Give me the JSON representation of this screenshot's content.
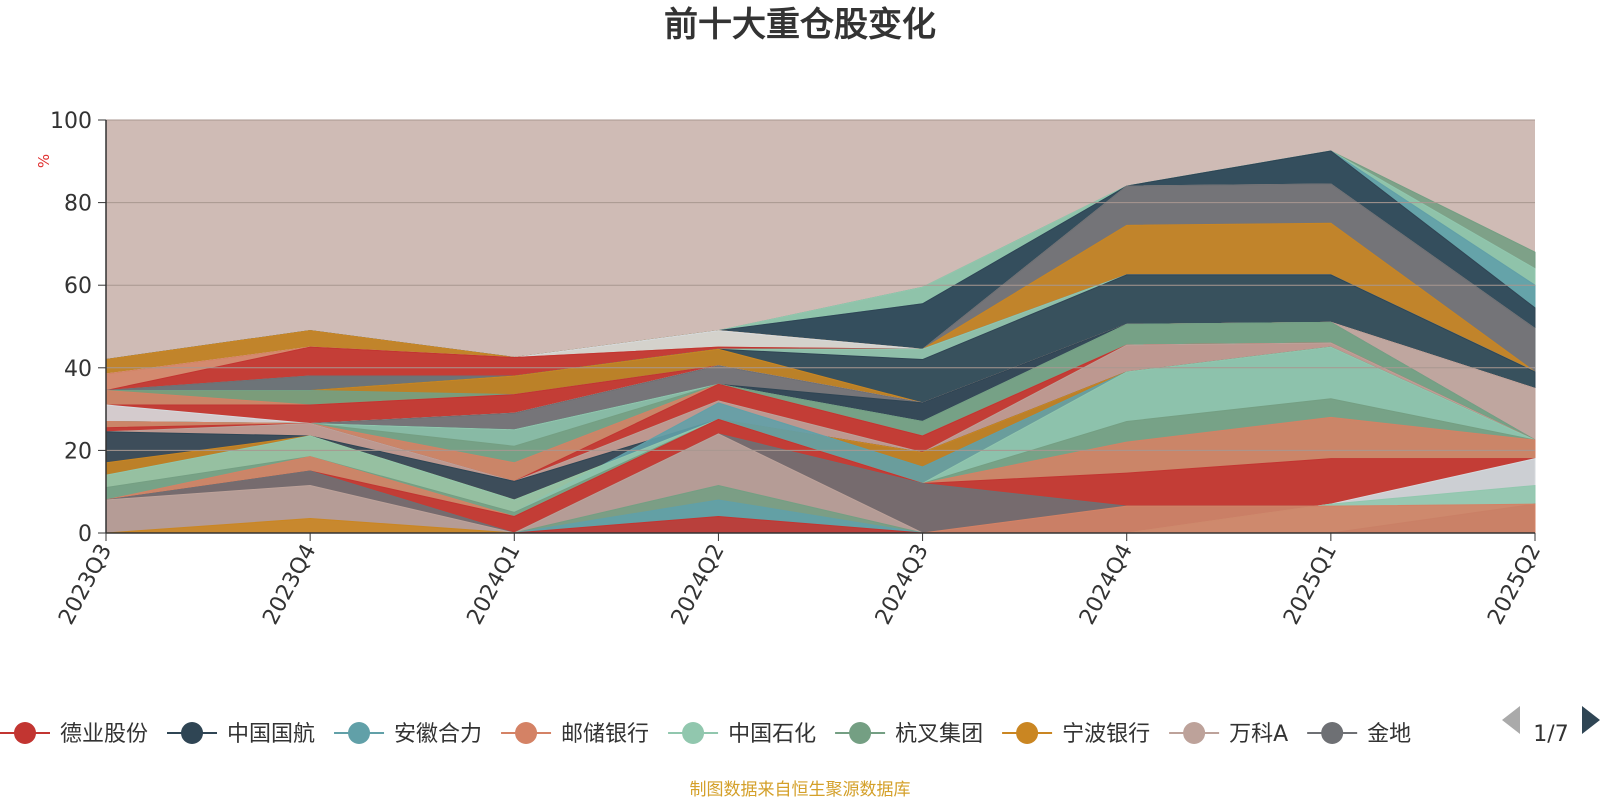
{
  "chart_data": {
    "type": "area",
    "title": "前十大重仓股变化",
    "ylabel": "%",
    "ylim": [
      0,
      100
    ],
    "yticks": [
      "0",
      "20",
      "40",
      "60",
      "80",
      "100"
    ],
    "categories": [
      "2023Q3",
      "2023Q4",
      "2024Q1",
      "2024Q2",
      "2024Q3",
      "2024Q4",
      "2025Q1",
      "2025Q2"
    ],
    "grid": true,
    "legend_position": "bottom",
    "legend": {
      "items": [
        {
          "name": "德业股份",
          "color": "#c23531"
        },
        {
          "name": "中国国航",
          "color": "#2f4554"
        },
        {
          "name": "安徽合力",
          "color": "#61a0a8"
        },
        {
          "name": "邮储银行",
          "color": "#d48265"
        },
        {
          "name": "中国石化",
          "color": "#91c7ae"
        },
        {
          "name": "杭叉集团",
          "color": "#749f83"
        },
        {
          "name": "宁波银行",
          "color": "#ca8622"
        },
        {
          "name": "万科A",
          "color": "#bda29a"
        },
        {
          "name": "金地",
          "color": "#6e7074"
        }
      ],
      "page": "1/7"
    },
    "source": "制图数据来自恒生聚源数据库",
    "background_fill_color": "#cfbbb5",
    "series": [
      {
        "color": "#ca8622",
        "values": [
          0,
          3.5,
          0,
          0,
          0,
          0,
          0,
          0
        ]
      },
      {
        "color": "#d48265",
        "values": [
          0,
          0,
          0,
          0,
          0,
          6.5,
          6.5,
          7
        ]
      },
      {
        "color": "#c23531",
        "values": [
          0,
          0,
          0,
          4,
          0,
          0,
          0,
          0
        ]
      },
      {
        "color": "#61a0a8",
        "values": [
          0,
          0,
          0,
          8,
          0,
          0,
          0,
          0
        ]
      },
      {
        "color": "#749f83",
        "values": [
          0,
          0,
          0,
          11.5,
          0,
          0,
          0,
          0
        ]
      },
      {
        "color": "#6e7074",
        "values": [
          0,
          0,
          0,
          0,
          0,
          0,
          0,
          7
        ]
      },
      {
        "color": "#91c7ae",
        "values": [
          0,
          0,
          0,
          0,
          0,
          0,
          7,
          11.5
        ]
      },
      {
        "color": "#d6dade",
        "values": [
          0,
          0,
          0,
          0,
          0,
          0,
          7,
          18
        ]
      },
      {
        "color": "#bda29a",
        "values": [
          8,
          11.5,
          0,
          24,
          0,
          0,
          0,
          0
        ]
      },
      {
        "color": "#6e7074",
        "values": [
          8,
          15,
          0,
          24,
          12,
          6.5,
          6.5,
          18
        ]
      },
      {
        "color": "#c23531",
        "values": [
          8,
          15,
          4,
          27.5,
          12,
          14.5,
          18,
          18
        ]
      },
      {
        "color": "#d48265",
        "values": [
          8,
          18.5,
          4,
          27.5,
          12,
          22,
          28,
          22.5
        ]
      },
      {
        "color": "#749f83",
        "values": [
          11,
          18.5,
          5,
          27.5,
          12,
          27,
          32.5,
          22.5
        ]
      },
      {
        "color": "#91c7ae",
        "values": [
          14,
          23.5,
          8,
          27.5,
          12,
          39,
          45,
          22.5
        ]
      },
      {
        "color": "#61a0a8",
        "values": [
          11,
          15,
          5,
          31.5,
          16,
          39,
          45,
          22.5
        ]
      },
      {
        "color": "#ca8622",
        "values": [
          17,
          23.5,
          8,
          27.5,
          19.5,
          39,
          45,
          22.5
        ]
      },
      {
        "color": "#2f4554",
        "values": [
          24.5,
          23.5,
          12.5,
          27.5,
          19.5,
          39,
          45,
          22.5
        ]
      },
      {
        "color": "#bda29a",
        "values": [
          24.5,
          26.5,
          12.5,
          32,
          19.5,
          45.5,
          46,
          22.5
        ]
      },
      {
        "color": "#c23531",
        "values": [
          25.5,
          26.5,
          12.5,
          36,
          23.5,
          45.5,
          46,
          22.5
        ]
      },
      {
        "color": "#d48265",
        "values": [
          27,
          26.5,
          17,
          36,
          23.5,
          45.5,
          46,
          22.5
        ]
      },
      {
        "color": "#749f83",
        "values": [
          27,
          26.5,
          21,
          36,
          27,
          50.5,
          51,
          22.5
        ]
      },
      {
        "color": "#91c7ae",
        "values": [
          27,
          26.5,
          25,
          36,
          27,
          50.5,
          51,
          22.5
        ]
      },
      {
        "color": "#2f4554",
        "values": [
          24.5,
          26.5,
          25,
          36,
          31.5,
          50.5,
          51,
          22.5
        ]
      },
      {
        "color": "#6e7074",
        "values": [
          27,
          26.5,
          29,
          40.5,
          31.5,
          50.5,
          51,
          22.5
        ]
      },
      {
        "color": "#bda29a",
        "values": [
          27,
          26.5,
          29,
          40.5,
          31.5,
          50.5,
          51,
          35
        ]
      },
      {
        "color": "#d6dade",
        "values": [
          31,
          26.5,
          29,
          40.5,
          31.5,
          50.5,
          51,
          35
        ]
      },
      {
        "color": "#c23531",
        "values": [
          31,
          31,
          33.5,
          40.5,
          31.5,
          50.5,
          51,
          35
        ]
      },
      {
        "color": "#d48265",
        "values": [
          34.5,
          31,
          33.5,
          40.5,
          31.5,
          50.5,
          51,
          35
        ]
      },
      {
        "color": "#749f83",
        "values": [
          34.5,
          34.5,
          33.5,
          40.5,
          31.5,
          50.5,
          51,
          35
        ]
      },
      {
        "color": "#ca8622",
        "values": [
          34.5,
          34.5,
          38,
          44.5,
          31.5,
          50.5,
          51,
          35
        ]
      },
      {
        "color": "#2f4554",
        "values": [
          34.5,
          34.5,
          38,
          44.5,
          42,
          62.5,
          62.5,
          39
        ]
      },
      {
        "color": "#91c7ae",
        "values": [
          34.5,
          34.5,
          38,
          44.5,
          44.5,
          62.5,
          62.5,
          39
        ]
      },
      {
        "color": "#6e7074",
        "values": [
          34.5,
          38,
          38,
          44.5,
          44.5,
          62.5,
          62.5,
          39
        ]
      },
      {
        "color": "#61a0a8",
        "values": [
          34.5,
          38,
          38,
          44.5,
          44.5,
          62.5,
          62.5,
          39
        ]
      },
      {
        "color": "#c23531",
        "values": [
          34.5,
          45,
          42.5,
          45,
          44.5,
          62.5,
          62.5,
          39
        ]
      },
      {
        "color": "#d48265",
        "values": [
          38.5,
          45,
          42.5,
          45,
          44.5,
          62.5,
          62.5,
          39
        ]
      },
      {
        "color": "#d6dade",
        "values": [
          38.5,
          45,
          42.5,
          49,
          44.5,
          62.5,
          62.5,
          39
        ]
      },
      {
        "color": "#ca8622",
        "values": [
          42,
          49,
          42.5,
          49,
          44.5,
          74.5,
          75,
          39
        ]
      },
      {
        "color": "#6e7074",
        "values": [
          42,
          49,
          42.5,
          49,
          44.5,
          84,
          84.5,
          49.5
        ]
      },
      {
        "color": "#bda29a",
        "values": [
          42,
          49,
          42.5,
          49,
          44.5,
          84,
          84.5,
          49.5
        ]
      },
      {
        "color": "#2f4554",
        "values": [
          42,
          49,
          42.5,
          49,
          55.5,
          84,
          92.5,
          54.5
        ]
      },
      {
        "color": "#61a0a8",
        "values": [
          42,
          49,
          42.5,
          49,
          55.5,
          84,
          92.5,
          60
        ]
      },
      {
        "color": "#91c7ae",
        "values": [
          42,
          49,
          42.5,
          49,
          59.5,
          84,
          92.5,
          64
        ]
      },
      {
        "color": "#749f83",
        "values": [
          42,
          49,
          42.5,
          49,
          59.5,
          84,
          92.5,
          68
        ]
      }
    ]
  }
}
